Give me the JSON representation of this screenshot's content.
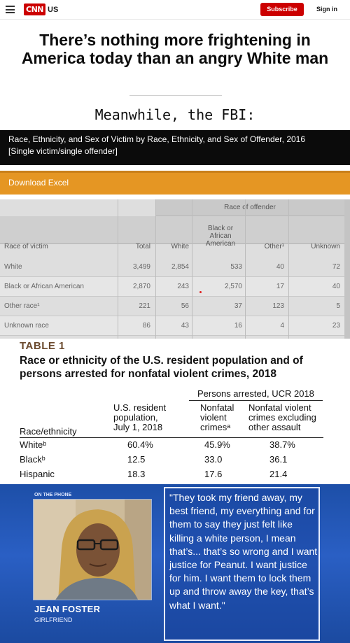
{
  "header": {
    "logo_text": "CNN",
    "logo_suffix": "US",
    "subscribe_label": "Subscribe",
    "signin_label": "Sign in"
  },
  "article": {
    "headline": "There’s nothing more frightening in America today than an angry White man"
  },
  "caption": "Meanwhile, the FBI:",
  "fbi": {
    "title_line1": "Race, Ethnicity, and Sex of Victim by Race, Ethnicity, and Sex of Offender, 2016",
    "title_line2": "[Single victim/single offender]",
    "download_label": "Download Excel",
    "group_header": "Race of offender",
    "columns": {
      "race_of_victim": "Race of victim",
      "total": "Total",
      "white": "White",
      "black_l1": "Black or",
      "black_l2": "African",
      "black_l3": "American",
      "other": "Other¹",
      "unknown": "Unknown"
    },
    "rows": [
      {
        "label": "White",
        "total": "3,499",
        "white": "2,854",
        "black": "533",
        "other": "40",
        "unknown": "72"
      },
      {
        "label": "Black or African American",
        "total": "2,870",
        "white": "243",
        "black": "2,570",
        "other": "17",
        "unknown": "40"
      },
      {
        "label": "Other race¹",
        "total": "221",
        "white": "56",
        "black": "37",
        "other": "123",
        "unknown": "5"
      },
      {
        "label": "Unknown race",
        "total": "86",
        "white": "43",
        "black": "16",
        "other": "4",
        "unknown": "23"
      }
    ]
  },
  "table1": {
    "label": "TABLE 1",
    "title": "Race or ethnicity of the U.S. resident population and of persons arrested for nonfatal violent crimes, 2018",
    "group_header": "Persons arrested, UCR 2018",
    "col_race": "Race/ethnicity",
    "col_pop_l1": "U.S. resident",
    "col_pop_l2": "population,",
    "col_pop_l3": "July 1, 2018",
    "col_nf_l1": "Nonfatal",
    "col_nf_l2": "violent",
    "col_nf_l3": "crimesᵃ",
    "col_nfx_l1": "Nonfatal violent",
    "col_nfx_l2": "crimes excluding",
    "col_nfx_l3": "other assault",
    "rows": [
      {
        "label": "Whiteᵇ",
        "pop": "60.4%",
        "nf": "45.9%",
        "nfx": "38.7%"
      },
      {
        "label": "Blackᵇ",
        "pop": "12.5",
        "nf": "33.0",
        "nfx": "36.1"
      },
      {
        "label": "Hispanic",
        "pop": "18.3",
        "nf": "17.6",
        "nfx": "21.4"
      }
    ]
  },
  "clip": {
    "on_the_phone": "ON THE PHONE",
    "name": "JEAN FOSTER",
    "role": "GIRLFRIEND",
    "quote": "\"They took my friend away, my best friend, my everything and for them to say they just felt like killing a white person, I mean that’s... that’s so wrong and I want justice for Peanut. I want justice for him. I want them to lock them up and throw away the key, that’s what I want.\""
  }
}
